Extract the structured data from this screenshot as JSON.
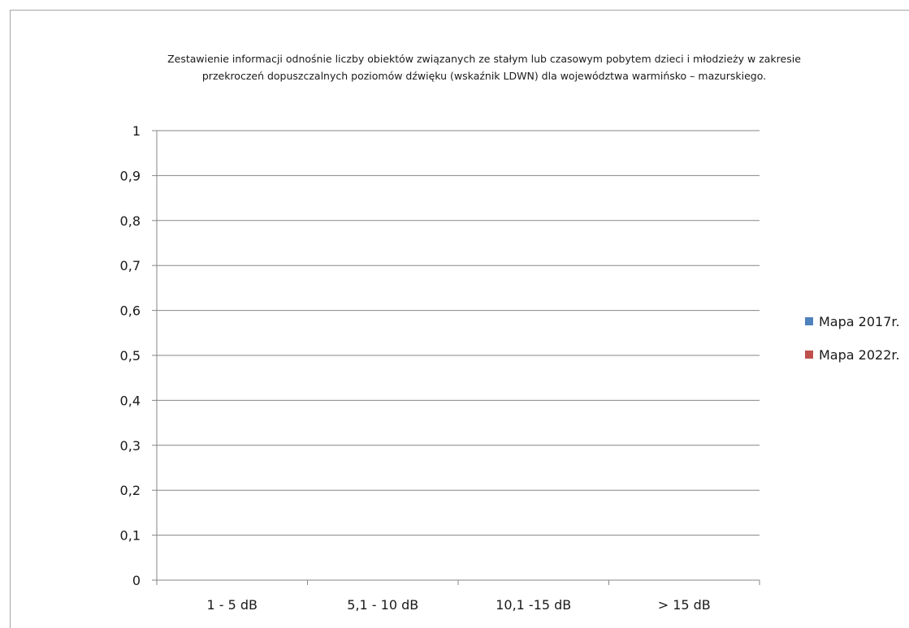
{
  "chart_data": {
    "type": "bar",
    "title_lines": [
      "Zestawienie informacji odnośnie liczby obiektów związanych ze stałym lub czasowym pobytem dzieci i młodzieży w zakresie",
      "przekroczeń dopuszczalnych poziomów dźwięku (wskaźnik LDWN) dla województwa warmińsko – mazurskiego."
    ],
    "categories": [
      "1 - 5 dB",
      "5,1 - 10 dB",
      "10,1 -15 dB",
      "> 15 dB"
    ],
    "series": [
      {
        "name": "Mapa 2017r.",
        "color": "#4f81bd",
        "values": [
          0,
          0,
          0,
          0
        ]
      },
      {
        "name": "Mapa 2022r.",
        "color": "#c0504d",
        "values": [
          0,
          0,
          0,
          0
        ]
      }
    ],
    "ylim": [
      0,
      1
    ],
    "y_ticks": [
      "0",
      "0,1",
      "0,2",
      "0,3",
      "0,4",
      "0,5",
      "0,6",
      "0,7",
      "0,8",
      "0,9",
      "1"
    ],
    "grid": true,
    "legend_position": "right"
  }
}
